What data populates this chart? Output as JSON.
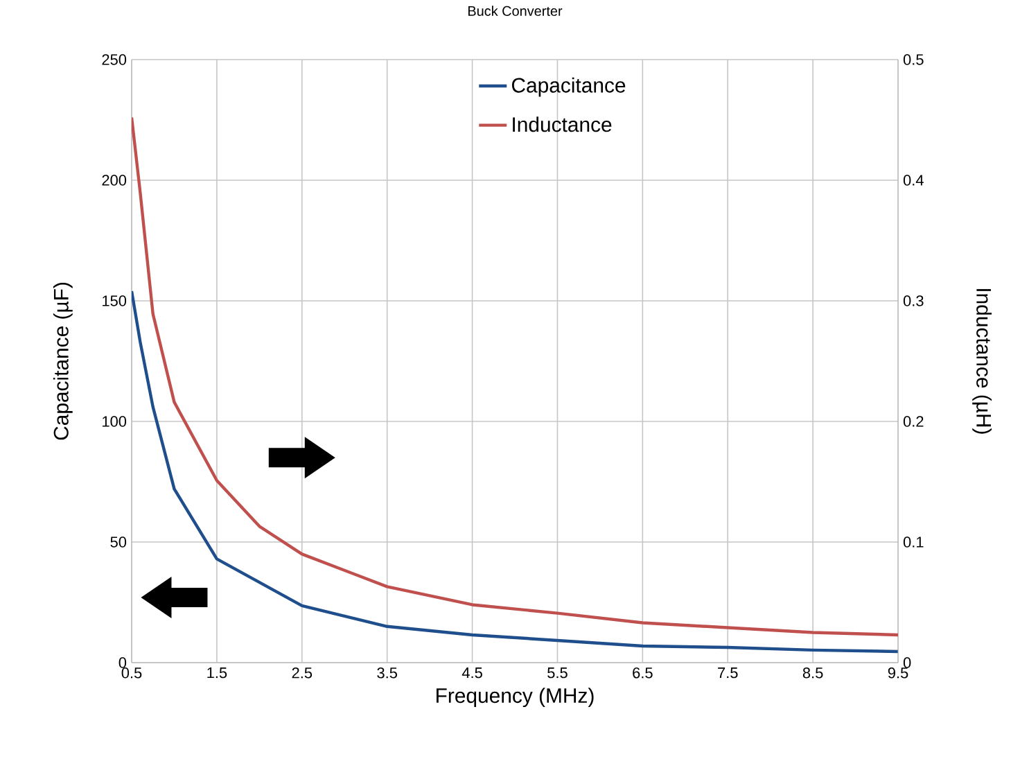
{
  "chart_data": {
    "type": "line",
    "title": "Buck Converter",
    "xlabel": "Frequency (MHz)",
    "ylabel": "Capacitance (µF)",
    "y2label": "Inductance (µH)",
    "xlim": [
      0.5,
      9.5
    ],
    "xticks": [
      0.5,
      1.5,
      2.5,
      3.5,
      4.5,
      5.5,
      6.5,
      7.5,
      8.5,
      9.5
    ],
    "ylim": [
      0,
      250
    ],
    "yticks": [
      0,
      50,
      100,
      150,
      200,
      250
    ],
    "y2lim": [
      0,
      0.5
    ],
    "y2ticks": [
      0,
      0.1,
      0.2,
      0.3,
      0.4,
      0.5
    ],
    "grid": true,
    "legend": "top",
    "marker": "none",
    "line_style": "solid",
    "series": [
      {
        "name": "Capacitance",
        "color": "#1f4e8c",
        "x": [
          0.5,
          0.6,
          0.75,
          1.0,
          1.5,
          2.5,
          3.5,
          4.5,
          5.5,
          6.5,
          7.5,
          8.5,
          9.5
        ],
        "values": [
          154,
          133,
          106,
          72,
          43,
          23.6,
          15,
          11.5,
          9.2,
          6.9,
          6.3,
          5.2,
          4.6
        ]
      },
      {
        "name": "Inductance",
        "color": "#c0504d",
        "axis": "y2",
        "x": [
          0.5,
          0.6,
          0.75,
          1.0,
          1.5,
          2.0,
          2.5,
          3.5,
          4.5,
          5.5,
          6.5,
          7.5,
          8.5,
          9.5
        ],
        "values": [
          0.452,
          0.39,
          0.289,
          0.216,
          0.151,
          0.113,
          0.09,
          0.063,
          0.048,
          0.041,
          0.033,
          0.029,
          0.025,
          0.023
        ]
      }
    ]
  }
}
